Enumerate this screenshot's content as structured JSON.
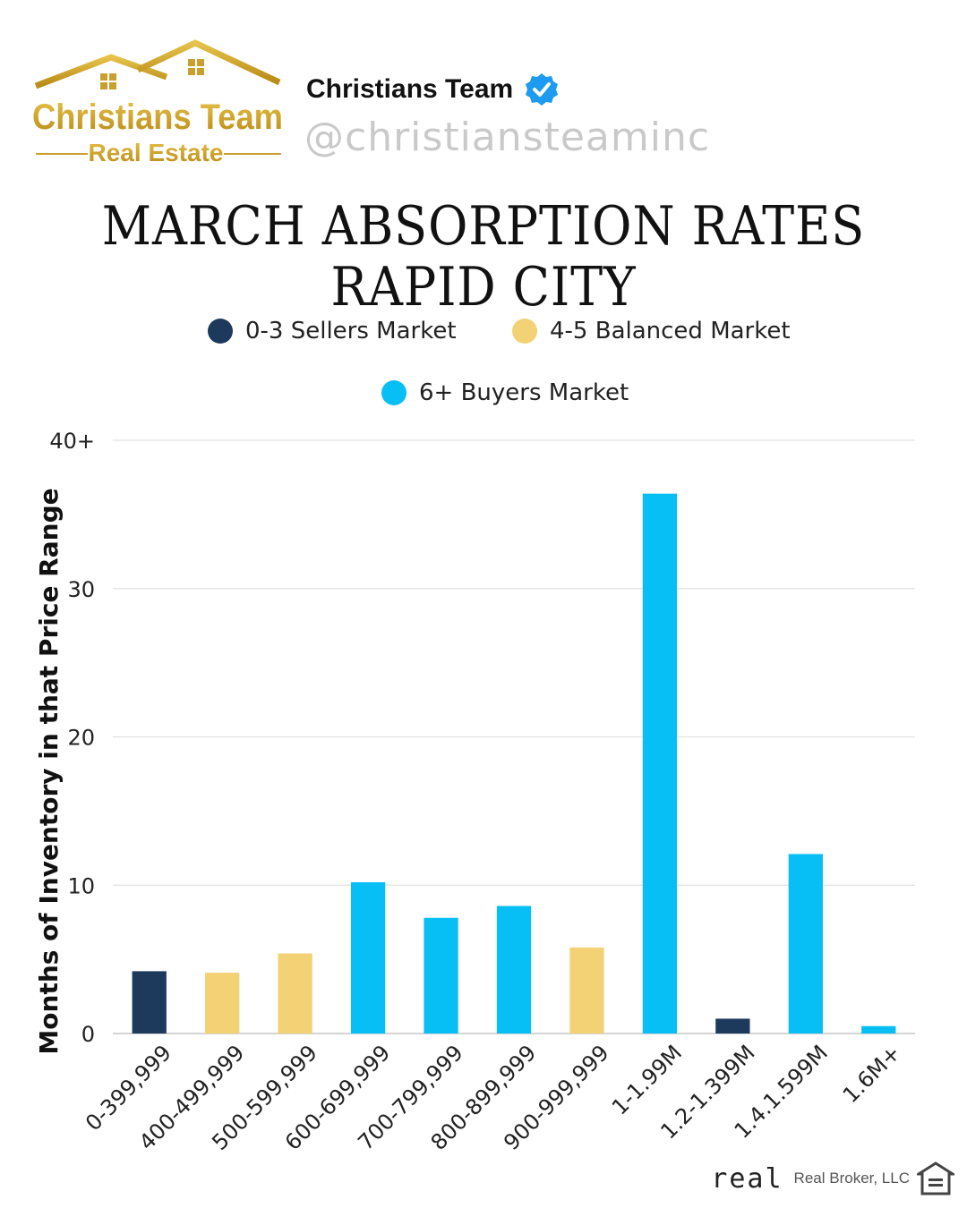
{
  "header": {
    "logo": {
      "line1": "Christians Team",
      "line2": "Real Estate",
      "icon": "houses-logo"
    },
    "name": "Christians Team",
    "verified_icon": "verified-check-icon",
    "handle": "@christiansteaminc"
  },
  "legend": [
    {
      "label": "0-3 Sellers Market",
      "color": "#1d3a5c"
    },
    {
      "label": "4-5 Balanced Market",
      "color": "#f2d274"
    },
    {
      "label": "6+ Buyers Market",
      "color": "#07bff5"
    }
  ],
  "footer": {
    "logo": "real",
    "broker": "Real Broker, LLC",
    "icon": "equal-housing-icon"
  },
  "chart_data": {
    "type": "bar",
    "title": "MARCH ABSORPTION RATES",
    "subtitle": "RAPID CITY",
    "xlabel": "",
    "ylabel": "Months of Inventory in that Price Range",
    "ylim": [
      0,
      40
    ],
    "yticks": [
      "0",
      "10",
      "20",
      "30",
      "40+"
    ],
    "grid": true,
    "legend_position": "top",
    "categories": [
      "0-399,999",
      "400-499,999",
      "500-599,999",
      "600-699,999",
      "700-799,999",
      "800-899,999",
      "900-999,999",
      "1-1.99M",
      "1.2-1.399M",
      "1.4.1.599M",
      "1.6M+"
    ],
    "values": [
      4.2,
      4.1,
      5.4,
      10.2,
      7.8,
      8.6,
      5.8,
      36.4,
      1.0,
      12.1,
      0.5
    ],
    "bar_colors": [
      "#1d3a5c",
      "#f2d274",
      "#f2d274",
      "#07bff5",
      "#07bff5",
      "#07bff5",
      "#f2d274",
      "#07bff5",
      "#1d3a5c",
      "#07bff5",
      "#07bff5"
    ]
  }
}
